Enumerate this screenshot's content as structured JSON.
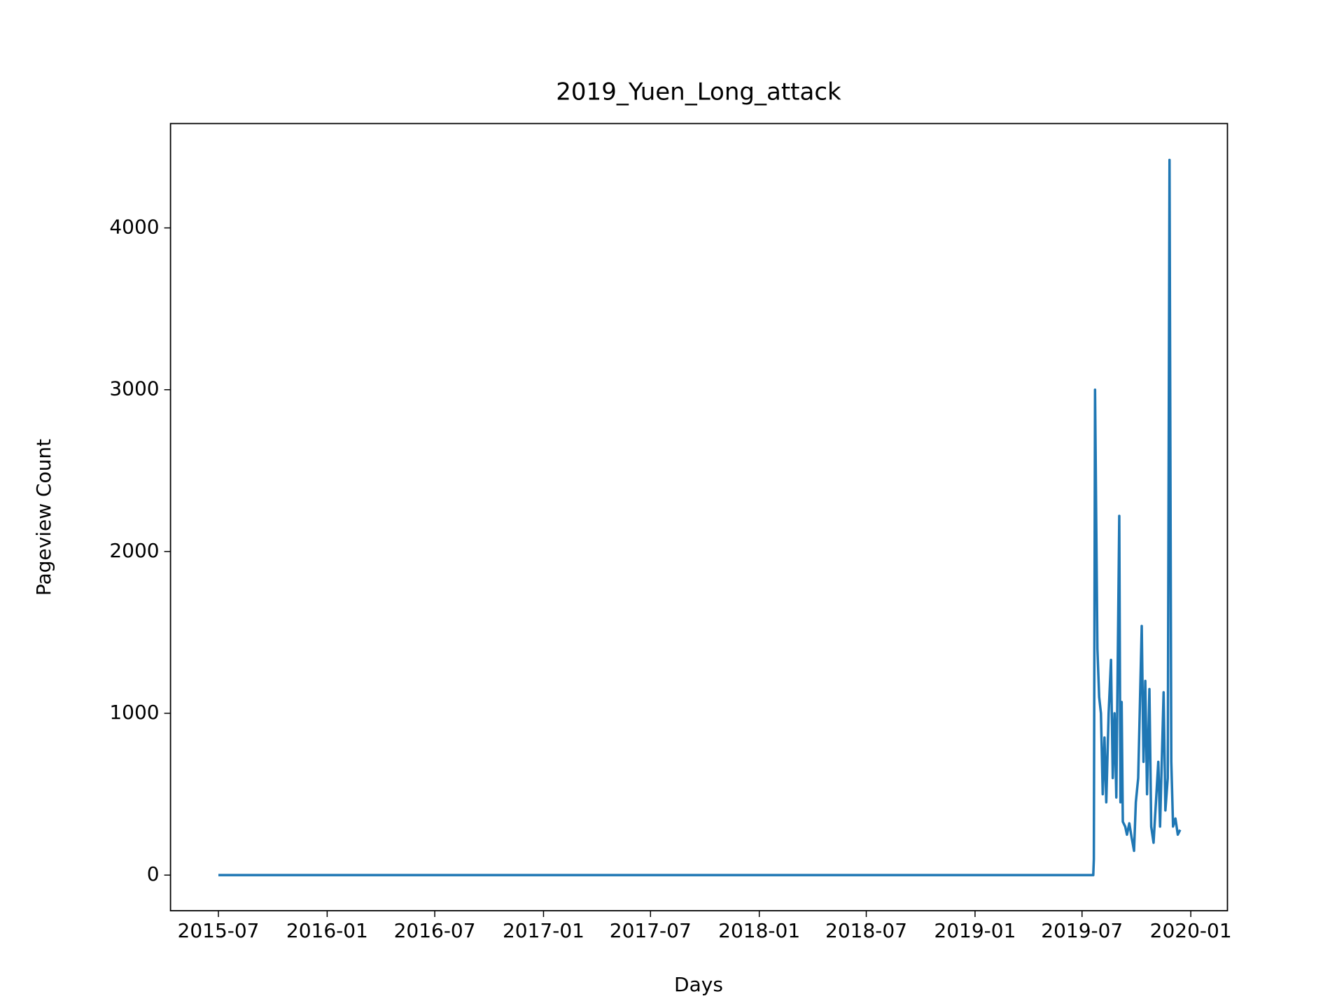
{
  "chart_data": {
    "type": "line",
    "title": "2019_Yuen_Long_attack",
    "x_label": "Days",
    "y_label": "Pageview Count",
    "x": [
      "2015-07-01",
      "2019-07-20",
      "2019-07-21",
      "2019-07-23",
      "2019-07-27",
      "2019-07-30",
      "2019-08-02",
      "2019-08-05",
      "2019-08-08",
      "2019-08-11",
      "2019-08-15",
      "2019-08-19",
      "2019-08-22",
      "2019-08-25",
      "2019-08-28",
      "2019-09-02",
      "2019-09-04",
      "2019-09-06",
      "2019-09-08",
      "2019-09-12",
      "2019-09-15",
      "2019-09-19",
      "2019-09-23",
      "2019-09-27",
      "2019-09-30",
      "2019-10-04",
      "2019-10-10",
      "2019-10-13",
      "2019-10-16",
      "2019-10-19",
      "2019-10-23",
      "2019-10-26",
      "2019-10-30",
      "2019-11-03",
      "2019-11-07",
      "2019-11-10",
      "2019-11-16",
      "2019-11-19",
      "2019-11-23",
      "2019-11-26",
      "2019-11-29",
      "2019-12-02",
      "2019-12-06",
      "2019-12-10",
      "2019-12-14"
    ],
    "series": [
      {
        "name": "2019_Yuen_Long_attack",
        "color": "#1f77b4",
        "values": [
          0,
          0,
          100,
          3000,
          1400,
          1100,
          1000,
          500,
          850,
          450,
          1000,
          1330,
          600,
          1000,
          480,
          2220,
          450,
          1070,
          330,
          300,
          250,
          320,
          230,
          150,
          450,
          600,
          1540,
          700,
          1200,
          500,
          1150,
          300,
          200,
          450,
          700,
          300,
          1130,
          400,
          600,
          4420,
          700,
          300,
          350,
          250,
          280
        ]
      }
    ],
    "xlim": [
      "2015-04-11",
      "2020-03-03"
    ],
    "xticks": [
      {
        "value": "2015-07-01",
        "label": "2015-07"
      },
      {
        "value": "2016-01-01",
        "label": "2016-01"
      },
      {
        "value": "2016-07-01",
        "label": "2016-07"
      },
      {
        "value": "2017-01-01",
        "label": "2017-01"
      },
      {
        "value": "2017-07-01",
        "label": "2017-07"
      },
      {
        "value": "2018-01-01",
        "label": "2018-01"
      },
      {
        "value": "2018-07-01",
        "label": "2018-07"
      },
      {
        "value": "2019-01-01",
        "label": "2019-01"
      },
      {
        "value": "2019-07-01",
        "label": "2019-07"
      },
      {
        "value": "2020-01-01",
        "label": "2020-01"
      }
    ],
    "ylim": [
      -220,
      4645
    ],
    "yticks": [
      0,
      1000,
      2000,
      3000,
      4000
    ],
    "grid": false
  }
}
